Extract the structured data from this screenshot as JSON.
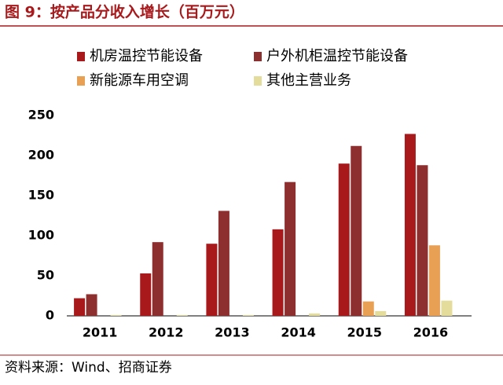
{
  "chart_data": {
    "type": "bar",
    "title": "图 9：按产品分收入增长（百万元）",
    "categories": [
      "2011",
      "2012",
      "2013",
      "2014",
      "2015",
      "2016"
    ],
    "series": [
      {
        "name": "机房温控节能设备",
        "color": "#a8191c",
        "values": [
          22,
          53,
          90,
          108,
          190,
          227
        ]
      },
      {
        "name": "户外机柜温控节能设备",
        "color": "#8e2f2f",
        "values": [
          27,
          92,
          131,
          167,
          212,
          188
        ]
      },
      {
        "name": "新能源车用空调",
        "color": "#e8a055",
        "values": [
          0,
          0,
          0,
          0,
          18,
          88
        ]
      },
      {
        "name": "其他主营业务",
        "color": "#e3dc9b",
        "values": [
          1,
          1,
          1,
          3,
          6,
          19
        ]
      }
    ],
    "ylim": [
      0,
      250
    ],
    "yticks": [
      0,
      50,
      100,
      150,
      200,
      250
    ],
    "grid": false,
    "source": "资料来源：Wind、招商证券"
  }
}
